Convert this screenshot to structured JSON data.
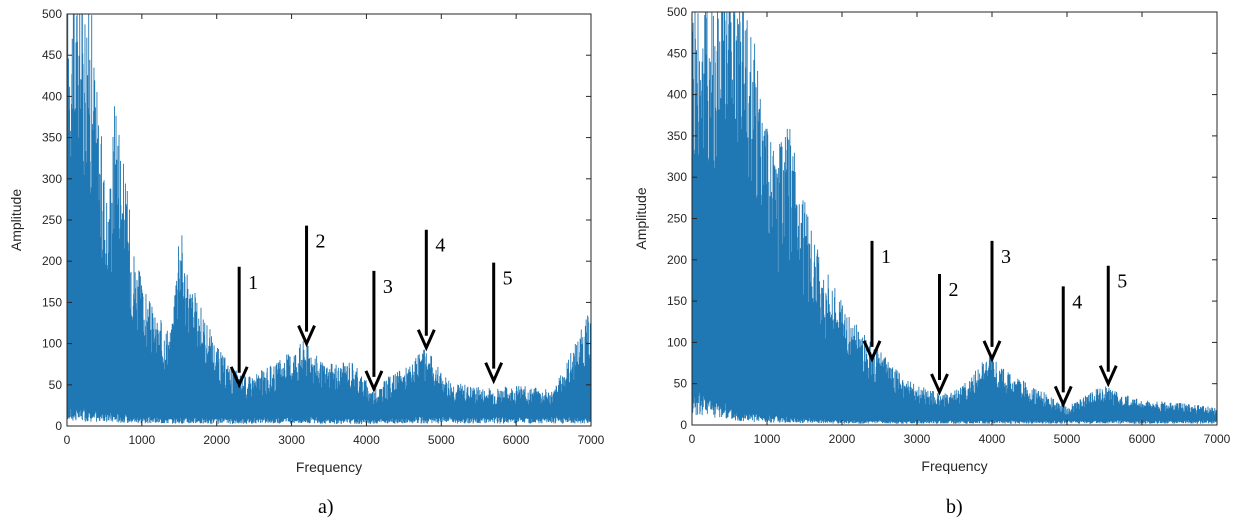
{
  "colors": {
    "series": "#1f77b4",
    "axis": "#262626",
    "arrow": "#000000"
  },
  "chart_data": [
    {
      "type": "area",
      "caption": "a)",
      "xlabel": "Frequency",
      "ylabel": "Amplitude",
      "xlim": [
        0,
        7000
      ],
      "ylim": [
        0,
        500
      ],
      "xticks": [
        0,
        1000,
        2000,
        3000,
        4000,
        5000,
        6000,
        7000
      ],
      "yticks": [
        0,
        50,
        100,
        150,
        200,
        250,
        300,
        350,
        400,
        450,
        500
      ],
      "grid": false,
      "envelope": [
        [
          0,
          500
        ],
        [
          150,
          500
        ],
        [
          300,
          490
        ],
        [
          450,
          330
        ],
        [
          550,
          250
        ],
        [
          650,
          390
        ],
        [
          750,
          300
        ],
        [
          900,
          200
        ],
        [
          1000,
          160
        ],
        [
          1200,
          120
        ],
        [
          1400,
          110
        ],
        [
          1500,
          245
        ],
        [
          1600,
          170
        ],
        [
          1800,
          130
        ],
        [
          2000,
          90
        ],
        [
          2200,
          65
        ],
        [
          2400,
          55
        ],
        [
          2600,
          62
        ],
        [
          2800,
          70
        ],
        [
          3000,
          85
        ],
        [
          3200,
          100
        ],
        [
          3400,
          70
        ],
        [
          3600,
          68
        ],
        [
          3800,
          75
        ],
        [
          4000,
          50
        ],
        [
          4100,
          40
        ],
        [
          4300,
          55
        ],
        [
          4600,
          70
        ],
        [
          4800,
          88
        ],
        [
          5000,
          60
        ],
        [
          5200,
          48
        ],
        [
          5600,
          42
        ],
        [
          6000,
          45
        ],
        [
          6500,
          40
        ],
        [
          7000,
          130
        ]
      ],
      "baseline": [
        [
          0,
          20
        ],
        [
          500,
          15
        ],
        [
          1000,
          10
        ],
        [
          2000,
          8
        ],
        [
          3000,
          10
        ],
        [
          4000,
          8
        ],
        [
          5000,
          10
        ],
        [
          6000,
          10
        ],
        [
          7000,
          10
        ]
      ],
      "annotations": [
        {
          "label": "1",
          "x": 2300,
          "y": 50
        },
        {
          "label": "2",
          "x": 3200,
          "y": 100
        },
        {
          "label": "3",
          "x": 4100,
          "y": 45
        },
        {
          "label": "4",
          "x": 4800,
          "y": 95
        },
        {
          "label": "5",
          "x": 5700,
          "y": 55
        }
      ]
    },
    {
      "type": "area",
      "caption": "b)",
      "xlabel": "Frequency",
      "ylabel": "Amplitude",
      "xlim": [
        0,
        7000
      ],
      "ylim": [
        0,
        500
      ],
      "xticks": [
        0,
        1000,
        2000,
        3000,
        4000,
        5000,
        6000,
        7000
      ],
      "yticks": [
        0,
        50,
        100,
        150,
        200,
        250,
        300,
        350,
        400,
        450,
        500
      ],
      "grid": false,
      "envelope": [
        [
          0,
          500
        ],
        [
          300,
          500
        ],
        [
          700,
          500
        ],
        [
          900,
          390
        ],
        [
          1100,
          300
        ],
        [
          1300,
          335
        ],
        [
          1450,
          280
        ],
        [
          1600,
          210
        ],
        [
          1800,
          170
        ],
        [
          2000,
          135
        ],
        [
          2200,
          110
        ],
        [
          2400,
          90
        ],
        [
          2600,
          75
        ],
        [
          2800,
          55
        ],
        [
          3000,
          45
        ],
        [
          3200,
          38
        ],
        [
          3400,
          35
        ],
        [
          3600,
          45
        ],
        [
          3800,
          65
        ],
        [
          4000,
          80
        ],
        [
          4200,
          60
        ],
        [
          4500,
          45
        ],
        [
          4800,
          32
        ],
        [
          5000,
          20
        ],
        [
          5300,
          35
        ],
        [
          5500,
          45
        ],
        [
          5700,
          35
        ],
        [
          6000,
          28
        ],
        [
          6500,
          25
        ],
        [
          7000,
          20
        ]
      ],
      "baseline": [
        [
          0,
          40
        ],
        [
          300,
          30
        ],
        [
          600,
          15
        ],
        [
          1000,
          10
        ],
        [
          2000,
          5
        ],
        [
          3000,
          5
        ],
        [
          4000,
          5
        ],
        [
          5000,
          5
        ],
        [
          6000,
          5
        ],
        [
          7000,
          5
        ]
      ],
      "annotations": [
        {
          "label": "1",
          "x": 2400,
          "y": 80
        },
        {
          "label": "2",
          "x": 3300,
          "y": 40
        },
        {
          "label": "3",
          "x": 4000,
          "y": 80
        },
        {
          "label": "4",
          "x": 4950,
          "y": 25
        },
        {
          "label": "5",
          "x": 5550,
          "y": 50
        }
      ]
    }
  ]
}
